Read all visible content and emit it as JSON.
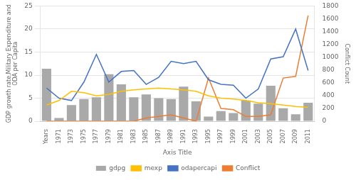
{
  "chart_data": {
    "type": "bar",
    "xlabel": "Axis Title",
    "ylabel": "GDP growth rate,Military Expenditure and\nODA per Capita",
    "y2label": "Conflict Count",
    "categories": [
      "Years",
      "1971",
      "1973",
      "1975",
      "1977",
      "1979",
      "1981",
      "1983",
      "1985",
      "1987",
      "1989",
      "1991",
      "1993",
      "1995",
      "1997",
      "1999",
      "2001",
      "2003",
      "2005",
      "2007",
      "2009",
      "2011"
    ],
    "series": [
      {
        "name": "gdpg",
        "type": "bar",
        "color": "#A9A9A9",
        "values": [
          11.4,
          0.7,
          3.5,
          4.8,
          5.2,
          10.2,
          8.0,
          5.2,
          5.8,
          5.0,
          4.8,
          7.5,
          4.3,
          1.0,
          2.2,
          1.8,
          4.5,
          3.8,
          7.7,
          2.8,
          1.5,
          4.0
        ]
      },
      {
        "name": "mexp",
        "type": "line",
        "color": "#FFC000",
        "values": [
          3.5,
          4.5,
          6.5,
          6.2,
          5.5,
          5.8,
          6.5,
          6.8,
          7.0,
          7.2,
          7.0,
          6.8,
          6.5,
          5.5,
          5.0,
          4.8,
          4.5,
          4.0,
          3.8,
          3.5,
          3.2,
          3.0
        ]
      },
      {
        "name": "odapercapi",
        "type": "line",
        "color": "#4472C4",
        "values": [
          7.2,
          5.0,
          4.5,
          8.5,
          14.5,
          8.5,
          10.8,
          11.0,
          8.0,
          9.5,
          13.0,
          12.5,
          13.0,
          9.0,
          8.0,
          7.8,
          5.0,
          7.0,
          13.5,
          14.0,
          20.0,
          11.0
        ]
      },
      {
        "name": "Conflict",
        "type": "line",
        "color": "#ED7D31",
        "axis": "y2",
        "values": [
          0,
          0,
          0,
          0,
          0,
          0,
          0,
          0,
          50,
          75,
          100,
          50,
          0,
          675,
          200,
          180,
          75,
          75,
          100,
          675,
          700,
          1650
        ]
      }
    ],
    "ylim": [
      0,
      25
    ],
    "yticks": [
      0,
      5,
      10,
      15,
      20,
      25
    ],
    "y2lim": [
      0,
      1800
    ],
    "y2ticks": [
      0,
      200,
      400,
      600,
      800,
      1000,
      1200,
      1400,
      1600,
      1800
    ],
    "grid": true,
    "legend": "bottom"
  }
}
